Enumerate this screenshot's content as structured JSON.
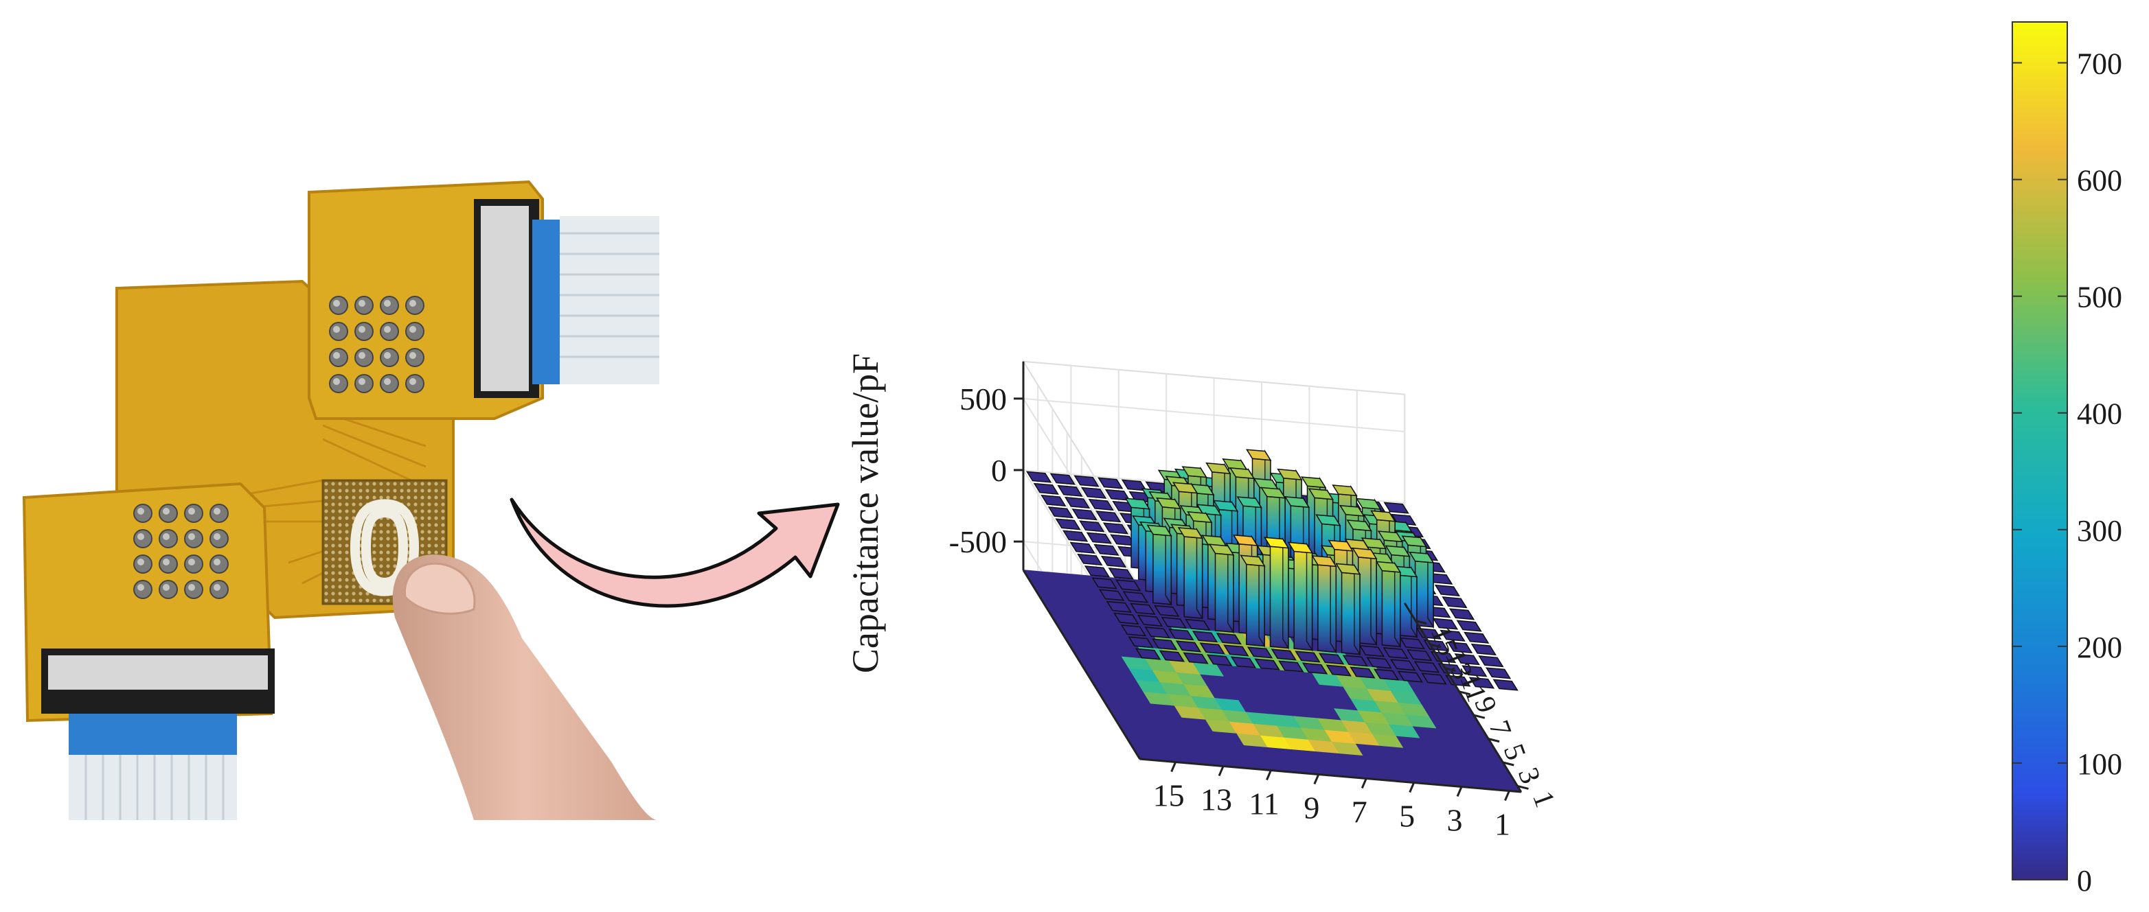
{
  "chart_data": {
    "type": "bar3d",
    "title": "",
    "zlabel": "Capacitance value/pF",
    "z_ticks": [
      -500,
      0,
      500
    ],
    "zlim": [
      -750,
      750
    ],
    "x_ticks": [
      15,
      13,
      11,
      9,
      7,
      5,
      3,
      1
    ],
    "y_ticks": [
      15,
      13,
      11,
      9,
      7,
      5,
      3,
      1
    ],
    "y_tick_labels": [
      "15",
      "13",
      "11",
      "9",
      "7",
      "5",
      "3",
      "1"
    ],
    "grid": "on",
    "colormap": "parula",
    "colorbar": {
      "ticks": [
        0,
        100,
        200,
        300,
        400,
        500,
        600,
        700
      ],
      "range": [
        0,
        735
      ],
      "placement": "right"
    },
    "projection": "floor heatmap at z = -700",
    "rows": 16,
    "cols": 16,
    "values": [
      [
        0,
        0,
        0,
        0,
        0,
        0,
        0,
        0,
        0,
        0,
        0,
        0,
        0,
        0,
        0,
        0
      ],
      [
        0,
        0,
        0,
        0,
        0,
        0,
        0,
        0,
        0,
        0,
        0,
        0,
        0,
        0,
        0,
        0
      ],
      [
        0,
        0,
        0,
        0,
        0,
        0,
        0,
        0,
        0,
        0,
        0,
        0,
        0,
        0,
        0,
        0
      ],
      [
        0,
        0,
        0,
        0,
        0,
        0,
        0,
        0,
        0,
        0,
        0,
        0,
        0,
        0,
        0,
        0
      ],
      [
        0,
        0,
        0,
        0,
        0,
        420,
        380,
        520,
        600,
        450,
        0,
        0,
        0,
        0,
        0,
        0
      ],
      [
        0,
        0,
        0,
        0,
        480,
        520,
        560,
        540,
        480,
        560,
        520,
        420,
        0,
        0,
        0,
        0
      ],
      [
        0,
        0,
        0,
        420,
        520,
        480,
        380,
        420,
        500,
        450,
        520,
        560,
        480,
        0,
        0,
        0
      ],
      [
        0,
        0,
        420,
        480,
        560,
        420,
        0,
        0,
        0,
        0,
        420,
        500,
        450,
        420,
        0,
        0
      ],
      [
        0,
        0,
        380,
        520,
        480,
        0,
        0,
        0,
        0,
        0,
        0,
        480,
        560,
        430,
        0,
        0
      ],
      [
        0,
        0,
        420,
        460,
        520,
        0,
        0,
        0,
        0,
        0,
        0,
        420,
        500,
        480,
        0,
        0
      ],
      [
        0,
        0,
        480,
        500,
        440,
        380,
        0,
        0,
        0,
        0,
        440,
        520,
        480,
        450,
        0,
        0
      ],
      [
        0,
        0,
        0,
        560,
        520,
        480,
        420,
        420,
        460,
        520,
        580,
        500,
        420,
        0,
        0,
        0
      ],
      [
        0,
        0,
        0,
        0,
        540,
        620,
        560,
        480,
        520,
        640,
        600,
        520,
        0,
        0,
        0,
        0
      ],
      [
        0,
        0,
        0,
        0,
        0,
        560,
        700,
        680,
        600,
        560,
        0,
        0,
        0,
        0,
        0,
        0
      ],
      [
        0,
        0,
        0,
        0,
        0,
        0,
        0,
        0,
        0,
        0,
        0,
        0,
        0,
        0,
        0,
        0
      ],
      [
        0,
        0,
        0,
        0,
        0,
        0,
        0,
        0,
        0,
        0,
        0,
        0,
        0,
        0,
        0,
        0
      ]
    ]
  },
  "photo": {
    "electrode_label": "0",
    "colors": {
      "pcb": "#d9a521",
      "pcb_dark": "#b88210",
      "cable_blue": "#2f7fd0",
      "cable_silver": "#e6ebef",
      "finger": "#e2b49e"
    }
  },
  "arrow": {
    "fill": "#f6c2c2",
    "stroke": "#111111"
  }
}
